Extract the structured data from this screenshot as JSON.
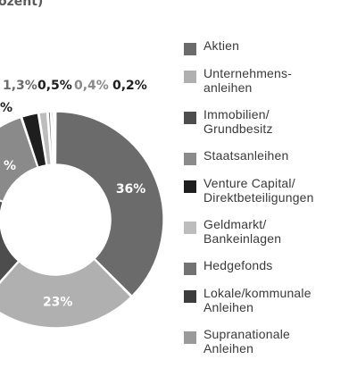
{
  "chart_data": {
    "type": "pie",
    "title": "ozent)",
    "values": [
      36,
      23,
      18,
      14,
      2.5,
      1.3,
      0.5,
      0.4,
      0.2
    ],
    "labels": [
      "36%",
      "23%",
      "",
      "%",
      ",5%",
      "1,3%",
      "0,5%",
      "0,4%",
      "0,2%"
    ],
    "legend": [
      "Aktien",
      "Unternehmens-\nanleihen",
      "Immobilien/\nGrundbesitz",
      "Staatsanleihen",
      "Venture Capital/\nDirektbeteiligungen",
      "Geldmarkt/\nBankeinlagen",
      "Hedgefonds",
      "Lokale/kommunale\nAnleihen",
      "Supranationale\nAnleihen"
    ],
    "colors": [
      "#6b6b6b",
      "#b0b0b0",
      "#4d4d4d",
      "#8a8a8a",
      "#1e1e1e",
      "#bdbdbd",
      "#727272",
      "#3c3c3c",
      "#9a9a9a"
    ],
    "label_colors": [
      "#ffffff",
      "#ffffff",
      "#ffffff",
      "#ffffff",
      "#1e1e1e",
      "#6b6b6b",
      "#1e1e1e",
      "#8a8a8a",
      "#1e1e1e"
    ],
    "legend_placement": "right"
  }
}
